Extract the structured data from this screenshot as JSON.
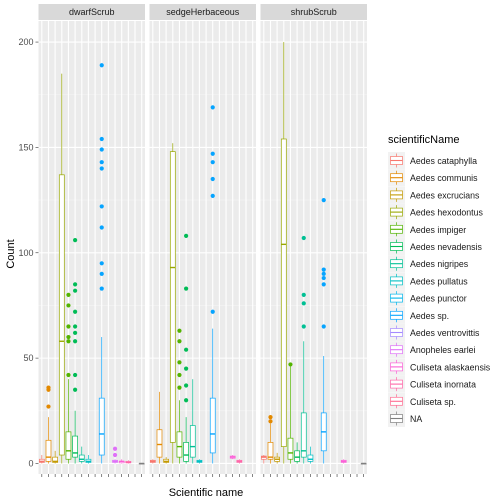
{
  "chart_data": {
    "type": "boxplot",
    "xlabel": "Scientific name",
    "ylabel": "Count",
    "ylim": [
      -5,
      210
    ],
    "yticks": [
      0,
      50,
      100,
      150,
      200
    ],
    "grid": true,
    "legend": {
      "title": "scientificName",
      "placement": "right",
      "entries": [
        {
          "name": "Aedes cataphylla",
          "color": "#F8766D"
        },
        {
          "name": "Aedes communis",
          "color": "#E38900"
        },
        {
          "name": "Aedes excrucians",
          "color": "#C49A00"
        },
        {
          "name": "Aedes hexodontus",
          "color": "#99A800"
        },
        {
          "name": "Aedes impiger",
          "color": "#53B400"
        },
        {
          "name": "Aedes nevadensis",
          "color": "#00BC56"
        },
        {
          "name": "Aedes nigripes",
          "color": "#00C094"
        },
        {
          "name": "Aedes pullatus",
          "color": "#00BFC4"
        },
        {
          "name": "Aedes punctor",
          "color": "#00B6EB"
        },
        {
          "name": "Aedes sp.",
          "color": "#06A4FF"
        },
        {
          "name": "Aedes ventrovittis",
          "color": "#A58AFF"
        },
        {
          "name": "Anopheles earlei",
          "color": "#DF70F8"
        },
        {
          "name": "Culiseta alaskaensis",
          "color": "#FB61D7"
        },
        {
          "name": "Culiseta inornata",
          "color": "#FF66A8"
        },
        {
          "name": "Culiseta sp.",
          "color": "#FF6C91"
        },
        {
          "name": "NA",
          "color": "#7F7F7F"
        }
      ]
    },
    "facets": [
      {
        "name": "dwarfScrub",
        "boxes": [
          {
            "species": "Aedes cataphylla",
            "min": 0,
            "q1": 0.5,
            "median": 1,
            "q3": 2,
            "max": 4,
            "outliers": []
          },
          {
            "species": "Aedes communis",
            "min": 0,
            "q1": 1,
            "median": 3,
            "q3": 11,
            "max": 22,
            "outliers": [
              27,
              35,
              36
            ]
          },
          {
            "species": "Aedes excrucians",
            "min": 0,
            "q1": 0.5,
            "median": 1,
            "q3": 3,
            "max": 6,
            "outliers": []
          },
          {
            "species": "Aedes hexodontus",
            "min": 0,
            "q1": 4,
            "median": 58,
            "q3": 137,
            "max": 185,
            "outliers": []
          },
          {
            "species": "Aedes impiger",
            "min": 0,
            "q1": 2,
            "median": 6,
            "q3": 15,
            "max": 40,
            "outliers": [
              42,
              58,
              60,
              65,
              75,
              80
            ]
          },
          {
            "species": "Aedes nevadensis",
            "min": 0,
            "q1": 3,
            "median": 5,
            "q3": 13,
            "max": 25,
            "outliers": [
              35,
              42,
              58,
              62,
              65,
              72,
              82,
              85,
              106
            ]
          },
          {
            "species": "Aedes nigripes",
            "min": 0,
            "q1": 1,
            "median": 2,
            "q3": 4,
            "max": 8,
            "outliers": []
          },
          {
            "species": "Aedes pullatus",
            "min": 0,
            "q1": 0.5,
            "median": 1,
            "q3": 2,
            "max": 4,
            "outliers": []
          },
          {
            "species": "Aedes sp.",
            "min": 0,
            "q1": 4,
            "median": 14,
            "q3": 31,
            "max": 60,
            "outliers": [
              83,
              90,
              95,
              112,
              122,
              140,
              143,
              149,
              154,
              189
            ]
          },
          {
            "species": "Anopheles earlei",
            "min": 0,
            "q1": 0.5,
            "median": 1,
            "q3": 1.5,
            "max": 2,
            "outliers": [
              4,
              7
            ]
          },
          {
            "species": "Culiseta alaskaensis",
            "min": 0,
            "q1": 0.3,
            "median": 1,
            "q3": 1,
            "max": 2,
            "outliers": []
          },
          {
            "species": "Culiseta inornata",
            "min": 0,
            "q1": 0.3,
            "median": 0.5,
            "q3": 1,
            "max": 1.5,
            "outliers": []
          },
          {
            "species": "NA",
            "min": 0,
            "q1": 0,
            "median": 0,
            "q3": 0,
            "max": 0,
            "outliers": []
          }
        ]
      },
      {
        "name": "sedgeHerbaceous",
        "boxes": [
          {
            "species": "Aedes cataphylla",
            "min": 0,
            "q1": 0.5,
            "median": 1,
            "q3": 1.5,
            "max": 2,
            "outliers": []
          },
          {
            "species": "Aedes communis",
            "min": 0,
            "q1": 3,
            "median": 9,
            "q3": 16,
            "max": 34,
            "outliers": []
          },
          {
            "species": "Aedes excrucians",
            "min": 0,
            "q1": 0.5,
            "median": 1,
            "q3": 2,
            "max": 3,
            "outliers": []
          },
          {
            "species": "Aedes hexodontus",
            "min": 0,
            "q1": 10,
            "median": 93,
            "q3": 148,
            "max": 152,
            "outliers": []
          },
          {
            "species": "Aedes impiger",
            "min": 0,
            "q1": 3,
            "median": 8,
            "q3": 15,
            "max": 30,
            "outliers": [
              36,
              42,
              48,
              58,
              63
            ]
          },
          {
            "species": "Aedes nevadensis",
            "min": 0,
            "q1": 1,
            "median": 4,
            "q3": 10,
            "max": 22,
            "outliers": [
              30,
              37,
              45,
              54,
              83,
              108
            ]
          },
          {
            "species": "Aedes nigripes",
            "min": 0,
            "q1": 3,
            "median": 8,
            "q3": 18,
            "max": 40,
            "outliers": []
          },
          {
            "species": "Aedes pullatus",
            "min": 0,
            "q1": 0.5,
            "median": 1,
            "q3": 1.5,
            "max": 2,
            "outliers": []
          },
          {
            "species": "Aedes sp.",
            "min": 0,
            "q1": 5,
            "median": 14,
            "q3": 31,
            "max": 64,
            "outliers": [
              72,
              127,
              135,
              143,
              147,
              169
            ]
          },
          {
            "species": "Culiseta alaskaensis",
            "min": 2,
            "q1": 2.5,
            "median": 3,
            "q3": 3.5,
            "max": 4,
            "outliers": []
          },
          {
            "species": "Culiseta inornata",
            "min": 0,
            "q1": 0.5,
            "median": 1,
            "q3": 1.5,
            "max": 2,
            "outliers": []
          }
        ]
      },
      {
        "name": "shrubScrub",
        "boxes": [
          {
            "species": "Aedes cataphylla",
            "min": 0,
            "q1": 2,
            "median": 3,
            "q3": 3.5,
            "max": 4,
            "outliers": []
          },
          {
            "species": "Aedes communis",
            "min": 0,
            "q1": 2,
            "median": 3,
            "q3": 10,
            "max": 19,
            "outliers": [
              20,
              22
            ]
          },
          {
            "species": "Aedes excrucians",
            "min": 0,
            "q1": 1,
            "median": 2,
            "q3": 3,
            "max": 5,
            "outliers": []
          },
          {
            "species": "Aedes hexodontus",
            "min": 0,
            "q1": 8,
            "median": 104,
            "q3": 154,
            "max": 200,
            "outliers": []
          },
          {
            "species": "Aedes impiger",
            "min": 0,
            "q1": 2,
            "median": 5,
            "q3": 12,
            "max": 46,
            "outliers": [
              47
            ]
          },
          {
            "species": "Aedes nevadensis",
            "min": 0,
            "q1": 1,
            "median": 3,
            "q3": 6,
            "max": 10,
            "outliers": []
          },
          {
            "species": "Aedes nigripes",
            "min": 0,
            "q1": 3,
            "median": 6,
            "q3": 24,
            "max": 58,
            "outliers": [
              65,
              76,
              80,
              107
            ]
          },
          {
            "species": "Aedes pullatus",
            "min": 0,
            "q1": 1,
            "median": 2,
            "q3": 4,
            "max": 8,
            "outliers": []
          },
          {
            "species": "Aedes sp.",
            "min": 0,
            "q1": 6,
            "median": 15,
            "q3": 24,
            "max": 51,
            "outliers": [
              65,
              85,
              88,
              90,
              92,
              125
            ]
          },
          {
            "species": "Culiseta alaskaensis",
            "min": 0,
            "q1": 0.5,
            "median": 1,
            "q3": 1.5,
            "max": 2,
            "outliers": []
          },
          {
            "species": "NA",
            "min": 0,
            "q1": 0,
            "median": 0,
            "q3": 0,
            "max": 0,
            "outliers": []
          }
        ]
      }
    ]
  }
}
